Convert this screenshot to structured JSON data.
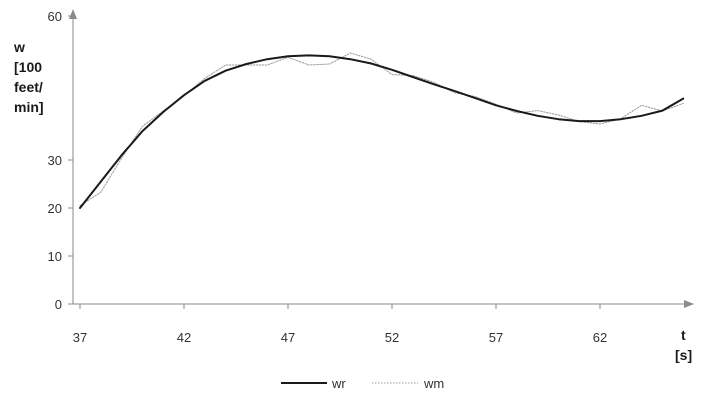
{
  "chart_data": {
    "type": "line",
    "title": "",
    "ylabel_lines": [
      "w",
      "[100",
      "feet/",
      "min]"
    ],
    "xlabel_lines": [
      "t",
      "[s]"
    ],
    "xlim": [
      37,
      66
    ],
    "ylim": [
      0,
      60
    ],
    "x_ticks": [
      37,
      42,
      47,
      52,
      57,
      62
    ],
    "y_ticks": [
      0,
      10,
      20,
      30,
      60
    ],
    "legend": "bottom-center",
    "grid": false,
    "series": [
      {
        "name": "wr",
        "style": "solid",
        "color": "#1a1a1a",
        "x": [
          37,
          38,
          39,
          40,
          41,
          42,
          43,
          44,
          45,
          46,
          47,
          48,
          49,
          50,
          51,
          52,
          53,
          54,
          55,
          56,
          57,
          58,
          59,
          60,
          61,
          62,
          63,
          64,
          65,
          66
        ],
        "y": [
          20,
          25.5,
          31,
          36,
          40,
          43.5,
          46.5,
          48.6,
          50,
          51,
          51.6,
          51.8,
          51.6,
          51,
          50.1,
          48.8,
          47.3,
          45.8,
          44.4,
          42.9,
          41.4,
          40.2,
          39.2,
          38.5,
          38.1,
          38.1,
          38.5,
          39.2,
          40.3,
          42.8
        ]
      },
      {
        "name": "wm",
        "style": "dotted",
        "color": "#999999",
        "x": [
          37,
          38,
          39,
          40,
          41,
          42,
          43,
          44,
          45,
          46,
          47,
          48,
          49,
          50,
          51,
          52,
          53,
          54,
          55,
          56,
          57,
          58,
          59,
          60,
          61,
          62,
          63,
          64,
          65,
          66
        ],
        "y": [
          20.5,
          23.3,
          30.4,
          37,
          40.2,
          43.4,
          47,
          49.8,
          49.8,
          49.8,
          51.4,
          49.8,
          50,
          52.3,
          51,
          47.8,
          47.6,
          46.2,
          44,
          43.2,
          41.6,
          39.8,
          40.3,
          39.4,
          38,
          37.5,
          38.6,
          41.4,
          40.2,
          41.8
        ]
      }
    ]
  }
}
